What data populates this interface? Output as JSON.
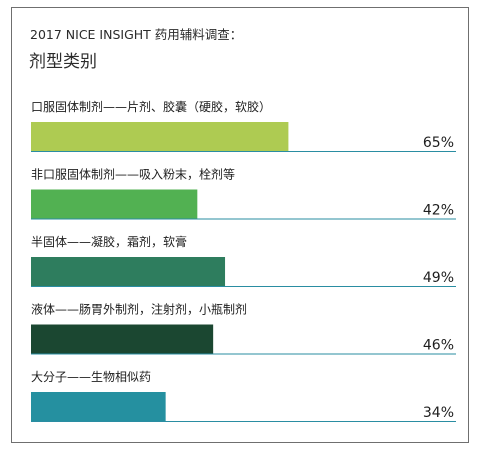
{
  "title": "2017 NICE INSIGHT 药用辅料调查：",
  "subtitle": "剂型类别",
  "chart_data": {
    "type": "bar",
    "orientation": "horizontal",
    "title": "2017 NICE INSIGHT 药用辅料调查：",
    "subtitle": "剂型类别",
    "categories": [
      "口服固体制剂——片剂、胶囊（硬胶，软胶）",
      "非口服固体制剂——吸入粉末，栓剂等",
      "半固体——凝胶，霜剂，软膏",
      "液体——肠胃外制剂，注射剂，小瓶制剂",
      "大分子——生物相似药"
    ],
    "values": [
      65,
      42,
      49,
      46,
      34
    ],
    "value_labels": [
      "65%",
      "42%",
      "49%",
      "46%",
      "34%"
    ],
    "value_unit": "%",
    "xlim": [
      0,
      100
    ],
    "grid": false,
    "legend": "none",
    "bar_colors": [
      "#aecb52",
      "#52b152",
      "#2e7d5e",
      "#1b4731",
      "#2590a0"
    ],
    "baseline_color": "#2a8da2"
  }
}
